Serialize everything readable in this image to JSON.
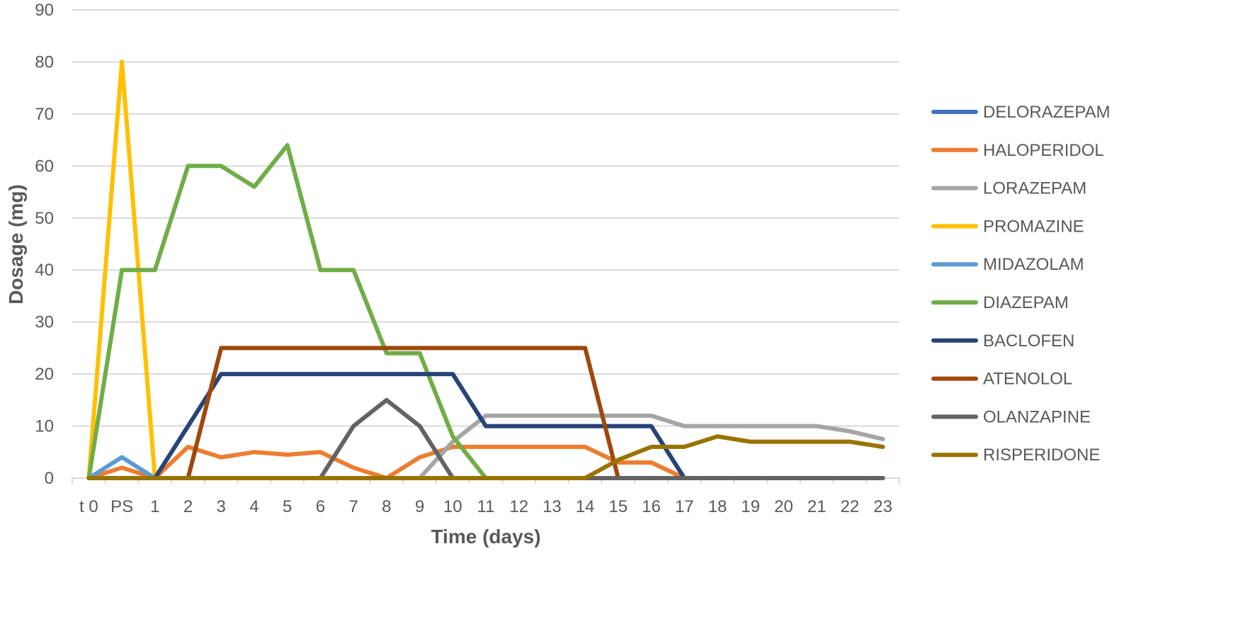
{
  "chart_data": {
    "type": "line",
    "xlabel": "Time (days)",
    "ylabel": "Dosage (mg)",
    "ylim": [
      0,
      90
    ],
    "yticks": [
      0,
      10,
      20,
      30,
      40,
      50,
      60,
      70,
      80,
      90
    ],
    "grid": true,
    "legend_position": "right",
    "categories": [
      "t 0",
      "PS",
      "1",
      "2",
      "3",
      "4",
      "5",
      "6",
      "7",
      "8",
      "9",
      "10",
      "11",
      "12",
      "13",
      "14",
      "15",
      "16",
      "17",
      "18",
      "19",
      "20",
      "21",
      "22",
      "23"
    ],
    "series": [
      {
        "name": "DELORAZEPAM",
        "color": "#4472C4",
        "values": [
          0,
          0,
          0,
          0,
          0,
          0,
          0,
          0,
          0,
          0,
          0,
          0,
          0,
          0,
          0,
          0,
          0,
          0,
          0,
          0,
          0,
          0,
          0,
          0,
          0
        ]
      },
      {
        "name": "HALOPERIDOL",
        "color": "#ED7D31",
        "values": [
          0,
          2,
          0,
          6,
          4,
          5,
          4.5,
          5,
          2,
          0,
          4,
          6,
          6,
          6,
          6,
          6,
          3,
          3,
          0,
          0,
          0,
          0,
          0,
          0,
          0
        ]
      },
      {
        "name": "LORAZEPAM",
        "color": "#A5A5A5",
        "values": [
          0,
          0,
          0,
          0,
          0,
          0,
          0,
          0,
          0,
          0,
          0,
          7,
          12,
          12,
          12,
          12,
          12,
          12,
          10,
          10,
          10,
          10,
          10,
          9,
          7.5
        ]
      },
      {
        "name": "PROMAZINE",
        "color": "#FFC000",
        "values": [
          0,
          80,
          0,
          0,
          0,
          0,
          0,
          0,
          0,
          0,
          0,
          0,
          0,
          0,
          0,
          0,
          0,
          0,
          0,
          0,
          0,
          0,
          0,
          0,
          0
        ]
      },
      {
        "name": "MIDAZOLAM",
        "color": "#5B9BD5",
        "values": [
          0,
          4,
          0,
          0,
          0,
          0,
          0,
          0,
          0,
          0,
          0,
          0,
          0,
          0,
          0,
          0,
          0,
          0,
          0,
          0,
          0,
          0,
          0,
          0,
          0
        ]
      },
      {
        "name": "DIAZEPAM",
        "color": "#70AD47",
        "values": [
          0,
          40,
          40,
          60,
          60,
          56,
          64,
          40,
          40,
          24,
          24,
          8,
          0,
          0,
          0,
          0,
          0,
          0,
          0,
          0,
          0,
          0,
          0,
          0,
          0
        ]
      },
      {
        "name": "BACLOFEN",
        "color": "#264478",
        "values": [
          0,
          0,
          0,
          10,
          20,
          20,
          20,
          20,
          20,
          20,
          20,
          20,
          10,
          10,
          10,
          10,
          10,
          10,
          0,
          0,
          0,
          0,
          0,
          0,
          0
        ]
      },
      {
        "name": "ATENOLOL",
        "color": "#9E480E",
        "values": [
          0,
          0,
          0,
          0,
          25,
          25,
          25,
          25,
          25,
          25,
          25,
          25,
          25,
          25,
          25,
          25,
          0,
          0,
          0,
          0,
          0,
          0,
          0,
          0,
          0
        ]
      },
      {
        "name": "OLANZAPINE",
        "color": "#636363",
        "values": [
          0,
          0,
          0,
          0,
          0,
          0,
          0,
          0,
          10,
          15,
          10,
          0,
          0,
          0,
          0,
          0,
          0,
          0,
          0,
          0,
          0,
          0,
          0,
          0,
          0
        ]
      },
      {
        "name": "RISPERIDONE",
        "color": "#997300",
        "values": [
          0,
          0,
          0,
          0,
          0,
          0,
          0,
          0,
          0,
          0,
          0,
          0,
          0,
          0,
          0,
          0,
          3.5,
          6,
          6,
          8,
          7,
          7,
          7,
          7,
          6
        ]
      }
    ]
  }
}
